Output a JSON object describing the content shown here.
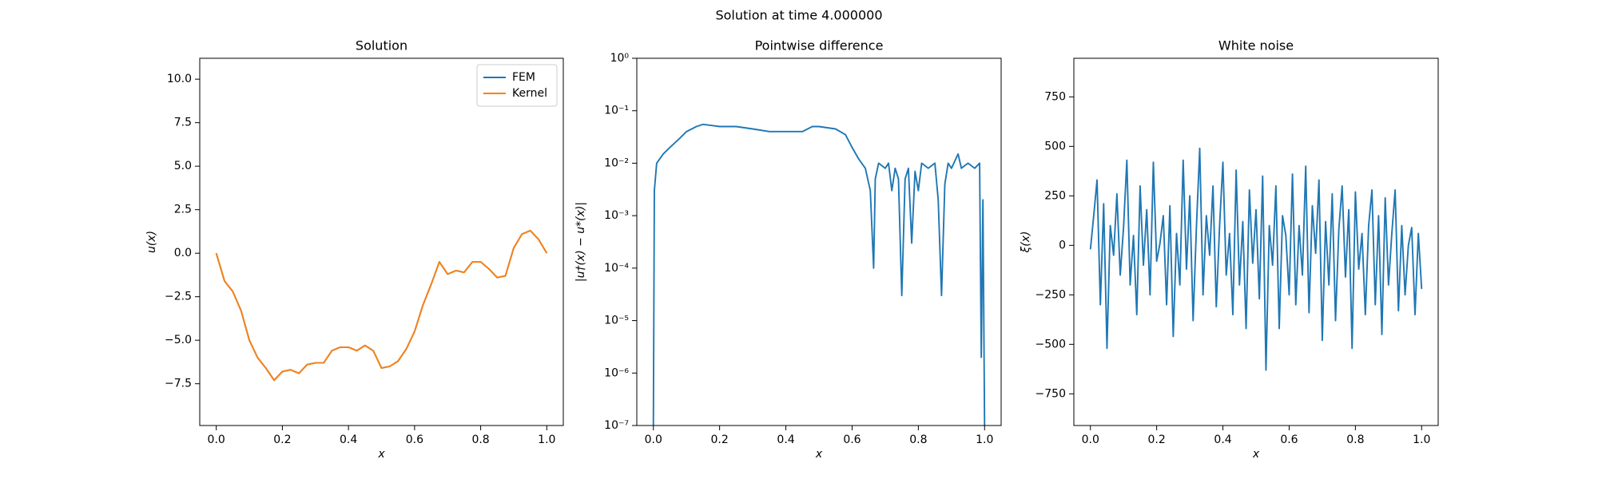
{
  "figure_title": "Solution at time 4.000000",
  "chart_data": [
    {
      "type": "line",
      "title": "Solution",
      "x_label": "x",
      "y_label": "u(x)",
      "xlim": [
        -0.05,
        1.05
      ],
      "ylim": [
        -9.9,
        11.2
      ],
      "log_y": false,
      "legend": "upper right",
      "xticks": [
        {
          "value": 0,
          "label": "0.0"
        },
        {
          "value": 0.2,
          "label": "0.2"
        },
        {
          "value": 0.4,
          "label": "0.4"
        },
        {
          "value": 0.6,
          "label": "0.6"
        },
        {
          "value": 0.8,
          "label": "0.8"
        },
        {
          "value": 1,
          "label": "1.0"
        }
      ],
      "yticks": [
        {
          "value": -7.5,
          "label": "−7.5"
        },
        {
          "value": -5,
          "label": "−5.0"
        },
        {
          "value": -2.5,
          "label": "−2.5"
        },
        {
          "value": 0,
          "label": "0.0"
        },
        {
          "value": 2.5,
          "label": "2.5"
        },
        {
          "value": 5,
          "label": "5.0"
        },
        {
          "value": 7.5,
          "label": "7.5"
        },
        {
          "value": 10,
          "label": "10.0"
        }
      ],
      "x": [
        0,
        0.025,
        0.05,
        0.075,
        0.1,
        0.125,
        0.15,
        0.175,
        0.2,
        0.225,
        0.25,
        0.275,
        0.3,
        0.325,
        0.35,
        0.375,
        0.4,
        0.425,
        0.45,
        0.475,
        0.5,
        0.525,
        0.55,
        0.575,
        0.6,
        0.625,
        0.65,
        0.675,
        0.7,
        0.725,
        0.75,
        0.775,
        0.8,
        0.825,
        0.85,
        0.875,
        0.9,
        0.925,
        0.95,
        0.975,
        1.0
      ],
      "series": [
        {
          "name": "FEM",
          "color": "#1f77b4",
          "values": [
            0,
            -1.6,
            -2.2,
            -3.3,
            -5.0,
            -6.0,
            -6.6,
            -7.3,
            -6.8,
            -6.7,
            -6.9,
            -6.4,
            -6.3,
            -6.3,
            -5.6,
            -5.4,
            -5.4,
            -5.6,
            -5.3,
            -5.6,
            -6.6,
            -6.5,
            -6.2,
            -5.5,
            -4.5,
            -3.0,
            -1.8,
            -0.5,
            -1.2,
            -1.0,
            -1.1,
            -0.5,
            -0.5,
            -0.9,
            -1.4,
            -1.3,
            0.3,
            1.1,
            1.3,
            0.8,
            0
          ]
        },
        {
          "name": "Kernel",
          "color": "#ff7f0e",
          "values": [
            0,
            -1.6,
            -2.2,
            -3.3,
            -5.0,
            -6.0,
            -6.6,
            -7.3,
            -6.8,
            -6.7,
            -6.9,
            -6.4,
            -6.3,
            -6.3,
            -5.6,
            -5.4,
            -5.4,
            -5.6,
            -5.3,
            -5.6,
            -6.6,
            -6.5,
            -6.2,
            -5.5,
            -4.5,
            -3.0,
            -1.8,
            -0.5,
            -1.2,
            -1.0,
            -1.1,
            -0.5,
            -0.5,
            -0.9,
            -1.4,
            -1.3,
            0.3,
            1.1,
            1.3,
            0.8,
            0
          ]
        }
      ]
    },
    {
      "type": "line",
      "title": "Pointwise difference",
      "x_label": "x",
      "y_label": "|u†(x) − u*(x)|",
      "xlim": [
        -0.05,
        1.05
      ],
      "ylim": [
        1e-07,
        1
      ],
      "log_y": true,
      "xticks": [
        {
          "value": 0,
          "label": "0.0"
        },
        {
          "value": 0.2,
          "label": "0.2"
        },
        {
          "value": 0.4,
          "label": "0.4"
        },
        {
          "value": 0.6,
          "label": "0.6"
        },
        {
          "value": 0.8,
          "label": "0.8"
        },
        {
          "value": 1,
          "label": "1.0"
        }
      ],
      "yticks": [
        {
          "value": 1e-07,
          "label": "10⁻⁷"
        },
        {
          "value": 1e-06,
          "label": "10⁻⁶"
        },
        {
          "value": 1e-05,
          "label": "10⁻⁵"
        },
        {
          "value": 0.0001,
          "label": "10⁻⁴"
        },
        {
          "value": 0.001,
          "label": "10⁻³"
        },
        {
          "value": 0.01,
          "label": "10⁻²"
        },
        {
          "value": 0.1,
          "label": "10⁻¹"
        },
        {
          "value": 1,
          "label": "10⁰"
        }
      ],
      "x": [
        0,
        0.003,
        0.01,
        0.03,
        0.05,
        0.08,
        0.1,
        0.13,
        0.15,
        0.2,
        0.25,
        0.3,
        0.35,
        0.4,
        0.45,
        0.48,
        0.5,
        0.55,
        0.58,
        0.6,
        0.62,
        0.64,
        0.655,
        0.665,
        0.67,
        0.68,
        0.7,
        0.71,
        0.72,
        0.73,
        0.74,
        0.75,
        0.76,
        0.77,
        0.78,
        0.79,
        0.8,
        0.81,
        0.83,
        0.85,
        0.86,
        0.87,
        0.88,
        0.89,
        0.9,
        0.92,
        0.93,
        0.95,
        0.97,
        0.985,
        0.99,
        0.995,
        1.0
      ],
      "series": [
        {
          "color": "#1f77b4",
          "values": [
            1e-07,
            0.003,
            0.01,
            0.015,
            0.02,
            0.03,
            0.04,
            0.05,
            0.055,
            0.05,
            0.05,
            0.045,
            0.04,
            0.04,
            0.04,
            0.05,
            0.05,
            0.045,
            0.035,
            0.02,
            0.012,
            0.008,
            0.003,
            0.0001,
            0.005,
            0.01,
            0.008,
            0.01,
            0.003,
            0.008,
            0.005,
            3e-05,
            0.005,
            0.008,
            0.0003,
            0.007,
            0.003,
            0.01,
            0.008,
            0.01,
            0.002,
            3e-05,
            0.004,
            0.01,
            0.008,
            0.015,
            0.008,
            0.01,
            0.008,
            0.01,
            2e-06,
            0.002,
            1e-07
          ]
        }
      ]
    },
    {
      "type": "line",
      "title": "White noise",
      "x_label": "x",
      "y_label": "ξ(x)",
      "xlim": [
        -0.05,
        1.05
      ],
      "ylim": [
        -910,
        945
      ],
      "log_y": false,
      "xticks": [
        {
          "value": 0,
          "label": "0.0"
        },
        {
          "value": 0.2,
          "label": "0.2"
        },
        {
          "value": 0.4,
          "label": "0.4"
        },
        {
          "value": 0.6,
          "label": "0.6"
        },
        {
          "value": 0.8,
          "label": "0.8"
        },
        {
          "value": 1,
          "label": "1.0"
        }
      ],
      "yticks": [
        {
          "value": -750,
          "label": "−750"
        },
        {
          "value": -500,
          "label": "−500"
        },
        {
          "value": -250,
          "label": "−250"
        },
        0,
        250,
        500,
        750
      ],
      "x": [
        0,
        0.01,
        0.02,
        0.03,
        0.04,
        0.05,
        0.06,
        0.07,
        0.08,
        0.09,
        0.1,
        0.11,
        0.12,
        0.13,
        0.14,
        0.15,
        0.16,
        0.17,
        0.18,
        0.19,
        0.2,
        0.21,
        0.22,
        0.23,
        0.24,
        0.25,
        0.26,
        0.27,
        0.28,
        0.29,
        0.3,
        0.31,
        0.32,
        0.33,
        0.34,
        0.35,
        0.36,
        0.37,
        0.38,
        0.39,
        0.4,
        0.41,
        0.42,
        0.43,
        0.44,
        0.45,
        0.46,
        0.47,
        0.48,
        0.49,
        0.5,
        0.51,
        0.52,
        0.53,
        0.54,
        0.55,
        0.56,
        0.57,
        0.58,
        0.59,
        0.6,
        0.61,
        0.62,
        0.63,
        0.64,
        0.65,
        0.66,
        0.67,
        0.68,
        0.69,
        0.7,
        0.71,
        0.72,
        0.73,
        0.74,
        0.75,
        0.76,
        0.77,
        0.78,
        0.79,
        0.8,
        0.81,
        0.82,
        0.83,
        0.84,
        0.85,
        0.86,
        0.87,
        0.88,
        0.89,
        0.9,
        0.91,
        0.92,
        0.93,
        0.94,
        0.95,
        0.96,
        0.97,
        0.98,
        0.99,
        1.0
      ],
      "series": [
        {
          "color": "#1f77b4",
          "values": [
            -20,
            150,
            330,
            -300,
            210,
            -520,
            100,
            -50,
            260,
            -150,
            90,
            430,
            -200,
            50,
            -350,
            300,
            -100,
            180,
            -250,
            420,
            -80,
            10,
            150,
            -300,
            200,
            -460,
            60,
            -200,
            430,
            -120,
            250,
            -380,
            90,
            490,
            -250,
            150,
            -50,
            300,
            -310,
            100,
            420,
            -150,
            60,
            -350,
            380,
            -200,
            120,
            -420,
            280,
            -90,
            180,
            -270,
            350,
            -630,
            100,
            -100,
            300,
            -420,
            150,
            50,
            -250,
            360,
            -300,
            100,
            -150,
            400,
            -340,
            200,
            -40,
            330,
            -480,
            120,
            -200,
            260,
            -380,
            80,
            300,
            -160,
            180,
            -520,
            270,
            -120,
            60,
            -350,
            100,
            280,
            -300,
            150,
            -450,
            240,
            -200,
            60,
            280,
            -330,
            100,
            -250,
            0,
            90,
            -350,
            60,
            -220
          ]
        }
      ]
    }
  ]
}
